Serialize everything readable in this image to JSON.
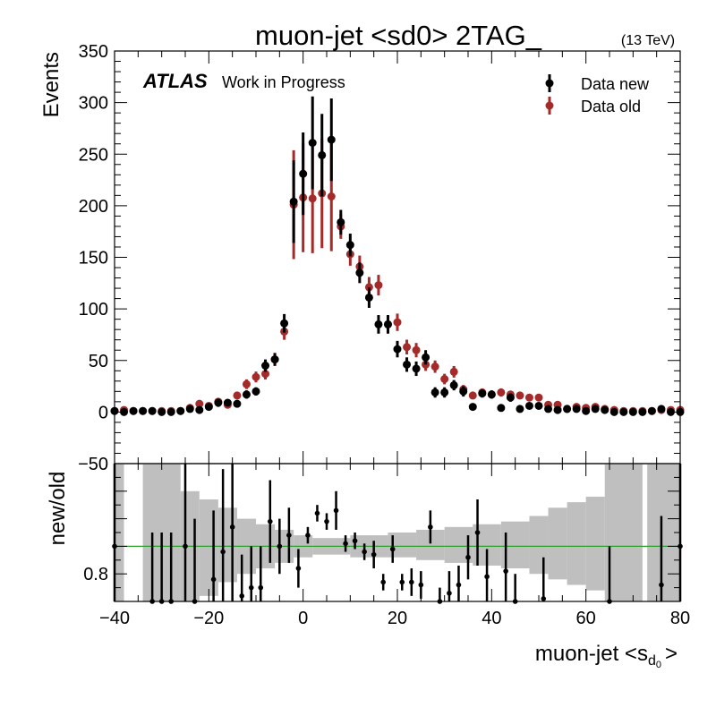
{
  "chart_data": {
    "type": "scatter",
    "title": "muon-jet <sd0> 2TAG_",
    "energy_label": "(13 TeV)",
    "experiment": "ATLAS",
    "status": "Work in Progress",
    "xlabel": "muon-jet <s",
    "xlabel_sub": "d",
    "xlabel_subsub": "0",
    "xlabel_close": ">",
    "ylabel": "Events",
    "ratio_ylabel": "new/old",
    "xlim": [
      -40,
      80
    ],
    "ylim": [
      -50,
      350
    ],
    "xticks": [
      -40,
      -20,
      0,
      20,
      40,
      60,
      80
    ],
    "yticks": [
      -50,
      0,
      50,
      100,
      150,
      200,
      250,
      300,
      350
    ],
    "ratio_ylim": [
      0.7,
      1.2
    ],
    "ratio_ytick_labels": [
      {
        "value": 1.2,
        "label": "−50"
      },
      {
        "value": 0.8,
        "label": "0.8"
      }
    ],
    "ratio_reference_value": 0.9,
    "legend_position": "top-right",
    "x": [
      -40,
      -38,
      -36,
      -34,
      -32,
      -30,
      -28,
      -26,
      -24,
      -22,
      -20,
      -18,
      -16,
      -14,
      -12,
      -10,
      -8,
      -6,
      -4,
      -2,
      0,
      2,
      4,
      6,
      8,
      10,
      12,
      14,
      16,
      18,
      20,
      22,
      24,
      26,
      28,
      30,
      32,
      34,
      36,
      38,
      40,
      42,
      44,
      46,
      48,
      50,
      52,
      54,
      56,
      58,
      60,
      62,
      64,
      66,
      68,
      70,
      72,
      74,
      76,
      78,
      80
    ],
    "series": [
      {
        "name": "Data new",
        "color": "#000000",
        "values": [
          1,
          0,
          1,
          1,
          1,
          0,
          0,
          1,
          3,
          2,
          5,
          9,
          9,
          8,
          17,
          20,
          45,
          51,
          86,
          204,
          231,
          261,
          249,
          264,
          184,
          162,
          135,
          111,
          85,
          85,
          61,
          46,
          42,
          53,
          19,
          19,
          26,
          20,
          5,
          18,
          17,
          4,
          14,
          3,
          6,
          6,
          3,
          2,
          3,
          3,
          1,
          3,
          2,
          0,
          0,
          0,
          0,
          1,
          3,
          0,
          0
        ],
        "errors": [
          2,
          1,
          2,
          2,
          2,
          1,
          2,
          2,
          3,
          3,
          3,
          4,
          3,
          3,
          4,
          4,
          6,
          6,
          9,
          40,
          40,
          45,
          40,
          40,
          12,
          11,
          10,
          10,
          9,
          9,
          8,
          7,
          7,
          7,
          5,
          5,
          5,
          5,
          3,
          4,
          4,
          2,
          4,
          2,
          3,
          3,
          2,
          2,
          2,
          2,
          1,
          2,
          2,
          1,
          1,
          1,
          1,
          2,
          2,
          1,
          1
        ]
      },
      {
        "name": "Data old",
        "color": "#a52a2a",
        "values": [
          1,
          2,
          1,
          1,
          1,
          1,
          1,
          1,
          4,
          8,
          6,
          10,
          7,
          16,
          27,
          34,
          37,
          51,
          78,
          201,
          208,
          207,
          212,
          209,
          180,
          153,
          141,
          121,
          123,
          85,
          87,
          63,
          60,
          46,
          44,
          32,
          39,
          22,
          16,
          19,
          17,
          19,
          17,
          16,
          14,
          14,
          7,
          7,
          3,
          5,
          4,
          5,
          3,
          2,
          1,
          1,
          1,
          1,
          2,
          2,
          2
        ]
      }
    ],
    "ratio_points": [
      {
        "x": -40,
        "y": 0.9,
        "err": 0.4
      },
      {
        "x": -32,
        "y": 0.7,
        "err": 0.25
      },
      {
        "x": -30,
        "y": 0.7,
        "err": 0.25
      },
      {
        "x": -28,
        "y": 0.7,
        "err": 0.25
      },
      {
        "x": -25,
        "y": 0.9,
        "err": 0.4
      },
      {
        "x": -23,
        "y": 0.7,
        "err": 0.3
      },
      {
        "x": -19,
        "y": 0.78,
        "err": 0.25
      },
      {
        "x": -17,
        "y": 0.88,
        "err": 0.3
      },
      {
        "x": -15,
        "y": 0.97,
        "err": 0.3
      },
      {
        "x": -13,
        "y": 0.72,
        "err": 0.15
      },
      {
        "x": -11,
        "y": 0.75,
        "err": 0.15
      },
      {
        "x": -9,
        "y": 0.75,
        "err": 0.15
      },
      {
        "x": -7,
        "y": 0.99,
        "err": 0.15
      },
      {
        "x": -5,
        "y": 0.9,
        "err": 0.1
      },
      {
        "x": -3,
        "y": 0.94,
        "err": 0.1
      },
      {
        "x": -1,
        "y": 0.82,
        "err": 0.07
      },
      {
        "x": 1,
        "y": 0.94,
        "err": 0.03
      },
      {
        "x": 3,
        "y": 1.02,
        "err": 0.03
      },
      {
        "x": 5,
        "y": 0.99,
        "err": 0.03
      },
      {
        "x": 7,
        "y": 1.03,
        "err": 0.07
      },
      {
        "x": 9,
        "y": 0.91,
        "err": 0.03
      },
      {
        "x": 11,
        "y": 0.92,
        "err": 0.03
      },
      {
        "x": 13,
        "y": 0.88,
        "err": 0.03
      },
      {
        "x": 15,
        "y": 0.87,
        "err": 0.05
      },
      {
        "x": 17,
        "y": 0.77,
        "err": 0.03
      },
      {
        "x": 19,
        "y": 0.89,
        "err": 0.05
      },
      {
        "x": 21,
        "y": 0.77,
        "err": 0.03
      },
      {
        "x": 23,
        "y": 0.77,
        "err": 0.05
      },
      {
        "x": 25,
        "y": 0.76,
        "err": 0.05
      },
      {
        "x": 27,
        "y": 0.97,
        "err": 0.06
      },
      {
        "x": 29,
        "y": 0.69,
        "err": 0.06
      },
      {
        "x": 31,
        "y": 0.73,
        "err": 0.08
      },
      {
        "x": 33,
        "y": 0.76,
        "err": 0.07
      },
      {
        "x": 35,
        "y": 0.86,
        "err": 0.08
      },
      {
        "x": 37,
        "y": 0.95,
        "err": 0.12
      },
      {
        "x": 39,
        "y": 0.79,
        "err": 0.1
      },
      {
        "x": 43,
        "y": 0.81,
        "err": 0.14
      },
      {
        "x": 45,
        "y": 0.68,
        "err": 0.12
      },
      {
        "x": 51,
        "y": 0.71,
        "err": 0.15
      },
      {
        "x": 65,
        "y": 0.7,
        "err": 0.2
      },
      {
        "x": 76,
        "y": 0.76,
        "err": 0.25
      },
      {
        "x": 80,
        "y": 0.9,
        "err": 0.4
      }
    ],
    "ratio_band": [
      {
        "x0": -40,
        "x1": -38,
        "lo": 0.7,
        "hi": 1.2
      },
      {
        "x0": -34,
        "x1": -26,
        "lo": 0.7,
        "hi": 1.2
      },
      {
        "x0": -26,
        "x1": -22,
        "lo": 0.7,
        "hi": 1.1
      },
      {
        "x0": -22,
        "x1": -18,
        "lo": 0.72,
        "hi": 1.07
      },
      {
        "x0": -18,
        "x1": -14,
        "lo": 0.77,
        "hi": 1.04
      },
      {
        "x0": -14,
        "x1": -10,
        "lo": 0.8,
        "hi": 1.0
      },
      {
        "x0": -10,
        "x1": -6,
        "lo": 0.82,
        "hi": 0.98
      },
      {
        "x0": -6,
        "x1": -2,
        "lo": 0.84,
        "hi": 0.96
      },
      {
        "x0": -2,
        "x1": 2,
        "lo": 0.86,
        "hi": 0.94
      },
      {
        "x0": 2,
        "x1": 10,
        "lo": 0.87,
        "hi": 0.93
      },
      {
        "x0": 10,
        "x1": 18,
        "lo": 0.86,
        "hi": 0.94
      },
      {
        "x0": 18,
        "x1": 24,
        "lo": 0.86,
        "hi": 0.95
      },
      {
        "x0": 24,
        "x1": 30,
        "lo": 0.85,
        "hi": 0.96
      },
      {
        "x0": 30,
        "x1": 36,
        "lo": 0.84,
        "hi": 0.97
      },
      {
        "x0": 36,
        "x1": 42,
        "lo": 0.83,
        "hi": 0.98
      },
      {
        "x0": 42,
        "x1": 48,
        "lo": 0.82,
        "hi": 0.99
      },
      {
        "x0": 48,
        "x1": 52,
        "lo": 0.8,
        "hi": 1.01
      },
      {
        "x0": 52,
        "x1": 56,
        "lo": 0.78,
        "hi": 1.04
      },
      {
        "x0": 56,
        "x1": 60,
        "lo": 0.76,
        "hi": 1.06
      },
      {
        "x0": 60,
        "x1": 64,
        "lo": 0.74,
        "hi": 1.08
      },
      {
        "x0": 64,
        "x1": 72,
        "lo": 0.7,
        "hi": 1.2
      },
      {
        "x0": 73,
        "x1": 80,
        "lo": 0.7,
        "hi": 1.2
      }
    ]
  }
}
